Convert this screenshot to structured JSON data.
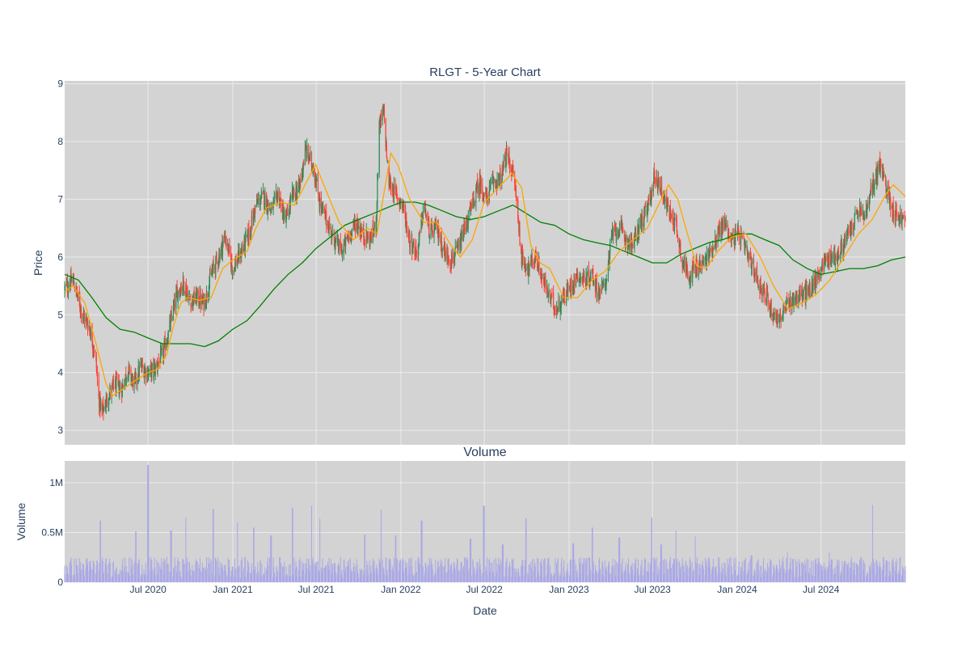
{
  "chart_data": [
    {
      "type": "candlestick",
      "title": "RLGT - 5-Year Chart",
      "xlabel": "",
      "ylabel": "Price",
      "ylim": [
        2.75,
        9.05
      ],
      "yticks": [
        3,
        4,
        5,
        6,
        7,
        8,
        9
      ],
      "xlim": [
        "2020-01-02",
        "2024-12-31"
      ],
      "grid": true,
      "legend": "none",
      "colors": {
        "up": "#2e8b57",
        "down": "#ff4136",
        "ma_short": "#ffa500",
        "ma_long": "#008000",
        "background": "#d3d3d3",
        "grid": "#ebebeb"
      },
      "price_path": [
        [
          "2020-01-02",
          5.45
        ],
        [
          "2020-01-20",
          5.6
        ],
        [
          "2020-02-10",
          5.0
        ],
        [
          "2020-02-24",
          4.8
        ],
        [
          "2020-03-09",
          4.3
        ],
        [
          "2020-03-16",
          3.55
        ],
        [
          "2020-03-23",
          3.3
        ],
        [
          "2020-04-06",
          3.6
        ],
        [
          "2020-04-20",
          3.8
        ],
        [
          "2020-05-04",
          3.7
        ],
        [
          "2020-05-18",
          4.05
        ],
        [
          "2020-06-01",
          3.8
        ],
        [
          "2020-06-15",
          4.1
        ],
        [
          "2020-07-01",
          4.0
        ],
        [
          "2020-07-15",
          4.05
        ],
        [
          "2020-08-01",
          4.3
        ],
        [
          "2020-08-15",
          4.7
        ],
        [
          "2020-09-01",
          5.35
        ],
        [
          "2020-09-15",
          5.55
        ],
        [
          "2020-10-01",
          5.25
        ],
        [
          "2020-10-15",
          5.3
        ],
        [
          "2020-11-01",
          5.2
        ],
        [
          "2020-11-15",
          5.7
        ],
        [
          "2020-12-01",
          6.0
        ],
        [
          "2020-12-15",
          6.35
        ],
        [
          "2021-01-01",
          5.8
        ],
        [
          "2021-01-20",
          6.1
        ],
        [
          "2021-02-05",
          6.4
        ],
        [
          "2021-02-20",
          6.9
        ],
        [
          "2021-03-08",
          7.05
        ],
        [
          "2021-03-25",
          6.8
        ],
        [
          "2021-04-10",
          7.1
        ],
        [
          "2021-04-25",
          6.6
        ],
        [
          "2021-05-10",
          7.05
        ],
        [
          "2021-05-25",
          7.2
        ],
        [
          "2021-06-08",
          7.85
        ],
        [
          "2021-06-25",
          7.55
        ],
        [
          "2021-07-10",
          6.9
        ],
        [
          "2021-07-25",
          6.6
        ],
        [
          "2021-08-10",
          6.3
        ],
        [
          "2021-08-25",
          6.1
        ],
        [
          "2021-09-10",
          6.35
        ],
        [
          "2021-09-25",
          6.6
        ],
        [
          "2021-10-10",
          6.4
        ],
        [
          "2021-10-25",
          6.3
        ],
        [
          "2021-11-08",
          6.55
        ],
        [
          "2021-11-15",
          8.3
        ],
        [
          "2021-11-25",
          8.5
        ],
        [
          "2021-12-05",
          7.3
        ],
        [
          "2021-12-20",
          7.1
        ],
        [
          "2022-01-05",
          6.9
        ],
        [
          "2022-01-20",
          6.3
        ],
        [
          "2022-02-05",
          6.05
        ],
        [
          "2022-02-20",
          6.9
        ],
        [
          "2022-03-05",
          6.4
        ],
        [
          "2022-03-20",
          6.5
        ],
        [
          "2022-04-05",
          6.1
        ],
        [
          "2022-04-20",
          5.95
        ],
        [
          "2022-05-05",
          6.1
        ],
        [
          "2022-05-20",
          6.5
        ],
        [
          "2022-06-05",
          6.9
        ],
        [
          "2022-06-20",
          7.3
        ],
        [
          "2022-07-05",
          7.0
        ],
        [
          "2022-07-20",
          7.3
        ],
        [
          "2022-08-05",
          7.35
        ],
        [
          "2022-08-20",
          7.8
        ],
        [
          "2022-09-05",
          7.3
        ],
        [
          "2022-09-20",
          6.0
        ],
        [
          "2022-10-05",
          5.8
        ],
        [
          "2022-10-20",
          6.0
        ],
        [
          "2022-11-05",
          5.6
        ],
        [
          "2022-11-20",
          5.3
        ],
        [
          "2022-12-05",
          5.1
        ],
        [
          "2022-12-20",
          5.3
        ],
        [
          "2023-01-05",
          5.5
        ],
        [
          "2023-01-20",
          5.7
        ],
        [
          "2023-02-05",
          5.6
        ],
        [
          "2023-02-20",
          5.7
        ],
        [
          "2023-03-05",
          5.4
        ],
        [
          "2023-03-20",
          5.5
        ],
        [
          "2023-04-05",
          6.4
        ],
        [
          "2023-04-20",
          6.5
        ],
        [
          "2023-05-05",
          6.3
        ],
        [
          "2023-05-20",
          6.2
        ],
        [
          "2023-06-05",
          6.6
        ],
        [
          "2023-06-20",
          6.8
        ],
        [
          "2023-07-05",
          7.4
        ],
        [
          "2023-07-20",
          7.2
        ],
        [
          "2023-08-05",
          6.8
        ],
        [
          "2023-08-20",
          6.6
        ],
        [
          "2023-09-05",
          5.9
        ],
        [
          "2023-09-20",
          5.7
        ],
        [
          "2023-10-05",
          5.8
        ],
        [
          "2023-10-20",
          5.9
        ],
        [
          "2023-11-05",
          6.1
        ],
        [
          "2023-11-20",
          6.4
        ],
        [
          "2023-12-05",
          6.6
        ],
        [
          "2023-12-20",
          6.3
        ],
        [
          "2024-01-05",
          6.4
        ],
        [
          "2024-01-20",
          6.1
        ],
        [
          "2024-02-05",
          5.8
        ],
        [
          "2024-02-20",
          5.5
        ],
        [
          "2024-03-05",
          5.3
        ],
        [
          "2024-03-20",
          5.0
        ],
        [
          "2024-04-05",
          4.95
        ],
        [
          "2024-04-20",
          5.2
        ],
        [
          "2024-05-05",
          5.3
        ],
        [
          "2024-05-20",
          5.35
        ],
        [
          "2024-06-05",
          5.4
        ],
        [
          "2024-06-20",
          5.6
        ],
        [
          "2024-07-05",
          5.9
        ],
        [
          "2024-07-20",
          6.0
        ],
        [
          "2024-08-05",
          6.0
        ],
        [
          "2024-08-20",
          6.25
        ],
        [
          "2024-09-05",
          6.5
        ],
        [
          "2024-09-20",
          6.8
        ],
        [
          "2024-10-05",
          6.7
        ],
        [
          "2024-10-20",
          7.2
        ],
        [
          "2024-11-05",
          7.6
        ],
        [
          "2024-11-20",
          7.2
        ],
        [
          "2024-12-05",
          6.8
        ],
        [
          "2024-12-31",
          6.6
        ]
      ],
      "ma_short": [
        [
          "2020-01-02",
          5.4
        ],
        [
          "2020-01-20",
          5.5
        ],
        [
          "2020-02-15",
          5.2
        ],
        [
          "2020-03-10",
          4.5
        ],
        [
          "2020-04-01",
          3.8
        ],
        [
          "2020-04-15",
          3.6
        ],
        [
          "2020-05-05",
          3.7
        ],
        [
          "2020-06-01",
          3.85
        ],
        [
          "2020-07-01",
          4.0
        ],
        [
          "2020-07-20",
          4.05
        ],
        [
          "2020-08-10",
          4.3
        ],
        [
          "2020-08-25",
          4.8
        ],
        [
          "2020-09-10",
          5.2
        ],
        [
          "2020-09-25",
          5.3
        ],
        [
          "2020-10-20",
          5.25
        ],
        [
          "2020-11-15",
          5.3
        ],
        [
          "2020-12-10",
          5.8
        ],
        [
          "2021-01-01",
          5.95
        ],
        [
          "2021-02-01",
          6.1
        ],
        [
          "2021-02-20",
          6.5
        ],
        [
          "2021-03-15",
          6.85
        ],
        [
          "2021-04-15",
          6.95
        ],
        [
          "2021-05-15",
          6.9
        ],
        [
          "2021-06-10",
          7.3
        ],
        [
          "2021-06-30",
          7.6
        ],
        [
          "2021-07-20",
          7.2
        ],
        [
          "2021-08-20",
          6.6
        ],
        [
          "2021-09-20",
          6.3
        ],
        [
          "2021-10-20",
          6.5
        ],
        [
          "2021-11-10",
          6.4
        ],
        [
          "2021-11-25",
          7.1
        ],
        [
          "2021-12-10",
          7.8
        ],
        [
          "2021-12-25",
          7.6
        ],
        [
          "2022-01-20",
          7.0
        ],
        [
          "2022-02-20",
          6.6
        ],
        [
          "2022-03-20",
          6.6
        ],
        [
          "2022-04-20",
          6.2
        ],
        [
          "2022-05-10",
          6.0
        ],
        [
          "2022-06-05",
          6.3
        ],
        [
          "2022-07-01",
          6.95
        ],
        [
          "2022-08-01",
          7.2
        ],
        [
          "2022-08-30",
          7.45
        ],
        [
          "2022-09-20",
          7.2
        ],
        [
          "2022-10-10",
          6.2
        ],
        [
          "2022-10-30",
          5.9
        ],
        [
          "2022-11-20",
          5.8
        ],
        [
          "2022-12-20",
          5.3
        ],
        [
          "2023-01-20",
          5.3
        ],
        [
          "2023-02-20",
          5.6
        ],
        [
          "2023-03-20",
          5.75
        ],
        [
          "2023-04-20",
          6.1
        ],
        [
          "2023-05-20",
          6.3
        ],
        [
          "2023-06-20",
          6.5
        ],
        [
          "2023-07-20",
          7.0
        ],
        [
          "2023-08-05",
          7.25
        ],
        [
          "2023-08-25",
          7.0
        ],
        [
          "2023-09-15",
          6.4
        ],
        [
          "2023-10-05",
          5.85
        ],
        [
          "2023-10-25",
          5.8
        ],
        [
          "2023-11-20",
          6.1
        ],
        [
          "2023-12-20",
          6.35
        ],
        [
          "2024-01-20",
          6.4
        ],
        [
          "2024-02-20",
          6.0
        ],
        [
          "2024-03-20",
          5.5
        ],
        [
          "2024-04-20",
          5.1
        ],
        [
          "2024-05-20",
          5.2
        ],
        [
          "2024-06-20",
          5.35
        ],
        [
          "2024-07-20",
          5.6
        ],
        [
          "2024-08-20",
          6.0
        ],
        [
          "2024-09-20",
          6.4
        ],
        [
          "2024-10-20",
          6.65
        ],
        [
          "2024-11-20",
          7.1
        ],
        [
          "2024-12-05",
          7.25
        ],
        [
          "2024-12-31",
          7.05
        ]
      ],
      "ma_long": [
        [
          "2020-01-02",
          5.7
        ],
        [
          "2020-02-01",
          5.6
        ],
        [
          "2020-03-01",
          5.3
        ],
        [
          "2020-04-01",
          4.95
        ],
        [
          "2020-05-01",
          4.75
        ],
        [
          "2020-06-01",
          4.7
        ],
        [
          "2020-07-01",
          4.6
        ],
        [
          "2020-08-01",
          4.5
        ],
        [
          "2020-09-01",
          4.5
        ],
        [
          "2020-10-01",
          4.5
        ],
        [
          "2020-11-01",
          4.45
        ],
        [
          "2020-12-01",
          4.55
        ],
        [
          "2021-01-01",
          4.75
        ],
        [
          "2021-02-01",
          4.9
        ],
        [
          "2021-03-01",
          5.15
        ],
        [
          "2021-04-01",
          5.45
        ],
        [
          "2021-05-01",
          5.7
        ],
        [
          "2021-06-01",
          5.9
        ],
        [
          "2021-07-01",
          6.15
        ],
        [
          "2021-08-01",
          6.35
        ],
        [
          "2021-09-01",
          6.55
        ],
        [
          "2021-10-01",
          6.65
        ],
        [
          "2021-11-01",
          6.75
        ],
        [
          "2021-12-01",
          6.85
        ],
        [
          "2022-01-01",
          6.95
        ],
        [
          "2022-02-01",
          6.95
        ],
        [
          "2022-03-01",
          6.9
        ],
        [
          "2022-04-01",
          6.8
        ],
        [
          "2022-05-01",
          6.7
        ],
        [
          "2022-06-01",
          6.65
        ],
        [
          "2022-07-01",
          6.7
        ],
        [
          "2022-08-01",
          6.8
        ],
        [
          "2022-09-01",
          6.9
        ],
        [
          "2022-10-01",
          6.75
        ],
        [
          "2022-11-01",
          6.6
        ],
        [
          "2022-12-01",
          6.55
        ],
        [
          "2023-01-01",
          6.4
        ],
        [
          "2023-02-01",
          6.3
        ],
        [
          "2023-03-01",
          6.25
        ],
        [
          "2023-04-01",
          6.2
        ],
        [
          "2023-05-01",
          6.1
        ],
        [
          "2023-06-01",
          6.0
        ],
        [
          "2023-07-01",
          5.9
        ],
        [
          "2023-08-01",
          5.9
        ],
        [
          "2023-09-01",
          6.05
        ],
        [
          "2023-10-01",
          6.15
        ],
        [
          "2023-11-01",
          6.25
        ],
        [
          "2023-12-01",
          6.3
        ],
        [
          "2024-01-01",
          6.4
        ],
        [
          "2024-02-01",
          6.4
        ],
        [
          "2024-03-01",
          6.3
        ],
        [
          "2024-04-01",
          6.2
        ],
        [
          "2024-05-01",
          5.95
        ],
        [
          "2024-06-01",
          5.8
        ],
        [
          "2024-07-01",
          5.7
        ],
        [
          "2024-08-01",
          5.75
        ],
        [
          "2024-09-01",
          5.8
        ],
        [
          "2024-10-01",
          5.8
        ],
        [
          "2024-11-01",
          5.85
        ],
        [
          "2024-12-01",
          5.95
        ],
        [
          "2024-12-31",
          6.0
        ]
      ]
    },
    {
      "type": "bar",
      "title": "Volume",
      "xlabel": "Date",
      "ylabel": "Volume",
      "ylim": [
        0,
        1220000
      ],
      "yticks": [
        0,
        500000,
        1000000
      ],
      "ytick_labels": [
        "0",
        "0.5M",
        "1M"
      ],
      "xticks": [
        "2020-07-01",
        "2021-01-01",
        "2021-07-01",
        "2022-01-01",
        "2022-07-01",
        "2023-01-01",
        "2023-07-01",
        "2024-01-01",
        "2024-07-01"
      ],
      "xtick_labels": [
        "Jul 2020",
        "Jan 2021",
        "Jul 2021",
        "Jan 2022",
        "Jul 2022",
        "Jan 2023",
        "Jul 2023",
        "Jan 2024",
        "Jul 2024"
      ],
      "grid": true,
      "colors": {
        "bar": "#aaa8e6",
        "background": "#d3d3d3"
      },
      "volume_typical": 150000,
      "volume_spikes": [
        [
          "2020-03-20",
          620000
        ],
        [
          "2020-06-05",
          510000
        ],
        [
          "2020-07-01",
          1180000
        ],
        [
          "2020-08-20",
          520000
        ],
        [
          "2020-09-20",
          650000
        ],
        [
          "2020-11-20",
          740000
        ],
        [
          "2021-01-10",
          600000
        ],
        [
          "2021-02-15",
          550000
        ],
        [
          "2021-03-25",
          470000
        ],
        [
          "2021-05-10",
          750000
        ],
        [
          "2021-06-20",
          770000
        ],
        [
          "2021-07-10",
          640000
        ],
        [
          "2021-10-15",
          480000
        ],
        [
          "2021-11-20",
          730000
        ],
        [
          "2021-12-20",
          470000
        ],
        [
          "2022-02-15",
          620000
        ],
        [
          "2022-06-01",
          440000
        ],
        [
          "2022-06-30",
          770000
        ],
        [
          "2022-08-10",
          380000
        ],
        [
          "2022-09-30",
          640000
        ],
        [
          "2023-01-10",
          390000
        ],
        [
          "2023-02-20",
          550000
        ],
        [
          "2023-04-20",
          450000
        ],
        [
          "2023-06-30",
          650000
        ],
        [
          "2023-07-20",
          380000
        ],
        [
          "2023-08-20",
          520000
        ],
        [
          "2023-10-01",
          460000
        ],
        [
          "2024-02-01",
          270000
        ],
        [
          "2024-04-20",
          300000
        ],
        [
          "2024-07-20",
          300000
        ],
        [
          "2024-10-20",
          780000
        ],
        [
          "2024-11-20",
          220000
        ],
        [
          "2024-12-20",
          250000
        ]
      ]
    }
  ]
}
